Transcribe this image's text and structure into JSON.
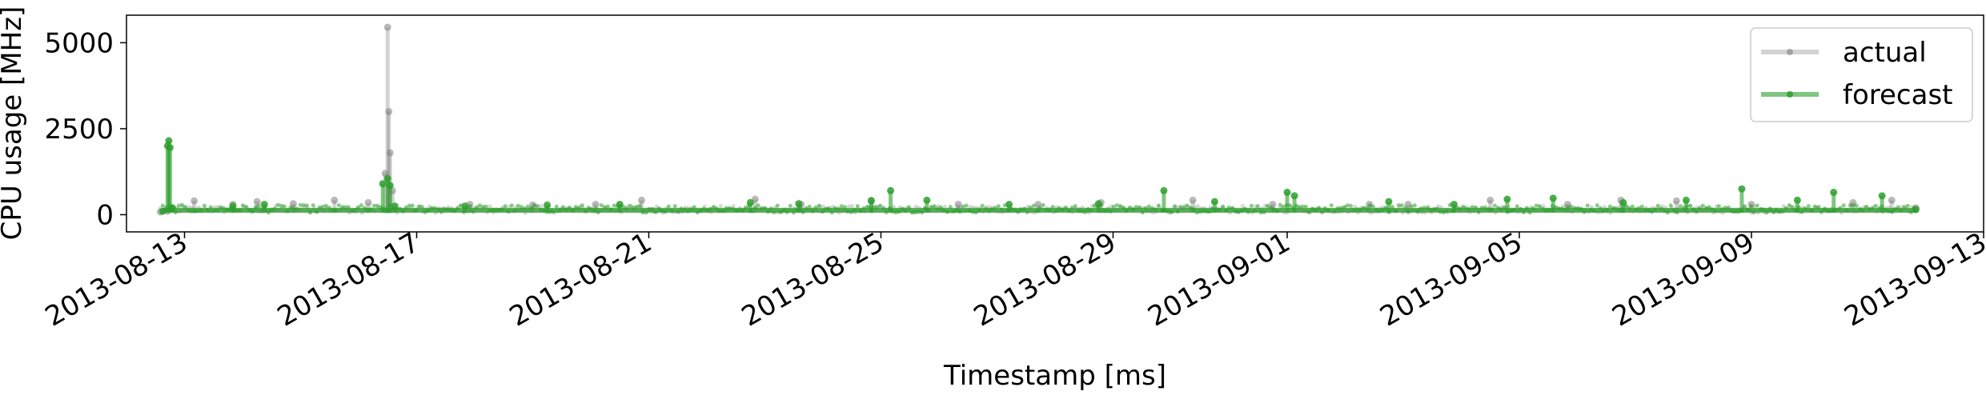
{
  "chart_data": {
    "type": "line",
    "title": "",
    "xlabel": "Timestamp [ms]",
    "ylabel": "CPU usage [MHz]",
    "xlim": [
      "2013-08-12T00:00",
      "2013-09-13T00:00"
    ],
    "ylim": [
      -500,
      5800
    ],
    "x_ticks": [
      "2013-08-13",
      "2013-08-17",
      "2013-08-21",
      "2013-08-25",
      "2013-08-29",
      "2013-09-01",
      "2013-09-05",
      "2013-09-09",
      "2013-09-13"
    ],
    "y_ticks": [
      0,
      2500,
      5000
    ],
    "y_tick_labels": [
      "0",
      "2500",
      "5000"
    ],
    "grid": false,
    "legend": {
      "position": "top-right",
      "entries": [
        "actual",
        "forecast"
      ]
    },
    "series": [
      {
        "name": "actual",
        "color": "#808080",
        "alpha": 0.35,
        "baseline_low": 50,
        "baseline_high": 180,
        "x": [
          "2013-08-12T14:00",
          "2013-08-12T17:00",
          "2013-08-13T04:00",
          "2013-08-13T20:00",
          "2013-08-14T06:00",
          "2013-08-14T21:00",
          "2013-08-15T14:00",
          "2013-08-16T04:00",
          "2013-08-16T11:00",
          "2013-08-16T12:00",
          "2013-08-16T12:30",
          "2013-08-16T13:00",
          "2013-08-16T14:00",
          "2013-08-17T22:00",
          "2013-08-19T00:00",
          "2013-08-20T02:00",
          "2013-08-20T21:00",
          "2013-08-22T20:00",
          "2013-08-23T15:00",
          "2013-08-24T20:00",
          "2013-08-26T08:00",
          "2013-08-27T17:00",
          "2013-08-28T19:00",
          "2013-08-30T09:00",
          "2013-08-31T18:00",
          "2013-09-02T10:00",
          "2013-09-03T02:00",
          "2013-09-04T12:00",
          "2013-09-05T20:00",
          "2013-09-06T18:00",
          "2013-09-07T17:00",
          "2013-09-09T00:00",
          "2013-09-10T18:00",
          "2013-09-11T10:00",
          "2013-09-11T20:00"
        ],
        "values": [
          80,
          100,
          400,
          300,
          380,
          320,
          420,
          350,
          1200,
          5450,
          3000,
          1800,
          700,
          300,
          280,
          300,
          420,
          450,
          300,
          420,
          300,
          300,
          350,
          420,
          300,
          300,
          300,
          420,
          300,
          420,
          400,
          300,
          350,
          420,
          200
        ]
      },
      {
        "name": "forecast",
        "color": "#2ca02c",
        "alpha": 0.6,
        "baseline_low": 60,
        "baseline_high": 200,
        "x": [
          "2013-08-12T15:00",
          "2013-08-12T17:00",
          "2013-08-12T17:30",
          "2013-08-12T18:00",
          "2013-08-12T19:00",
          "2013-08-13T20:00",
          "2013-08-14T09:00",
          "2013-08-16T10:00",
          "2013-08-16T12:00",
          "2013-08-16T13:00",
          "2013-08-16T15:00",
          "2013-08-17T20:00",
          "2013-08-19T06:00",
          "2013-08-20T12:00",
          "2013-08-22T18:00",
          "2013-08-23T14:00",
          "2013-08-24T20:00",
          "2013-08-25T04:00",
          "2013-08-25T19:00",
          "2013-08-27T05:00",
          "2013-08-28T18:00",
          "2013-08-29T21:00",
          "2013-08-30T18:00",
          "2013-09-01T00:00",
          "2013-09-01T03:00",
          "2013-09-02T18:00",
          "2013-09-03T21:00",
          "2013-09-04T19:00",
          "2013-09-05T14:00",
          "2013-09-06T19:00",
          "2013-09-07T21:00",
          "2013-09-08T20:00",
          "2013-09-09T19:00",
          "2013-09-10T10:00",
          "2013-09-11T06:00",
          "2013-09-11T20:00"
        ],
        "values": [
          100,
          2000,
          2150,
          1950,
          200,
          250,
          300,
          900,
          1050,
          850,
          250,
          250,
          280,
          300,
          350,
          320,
          400,
          700,
          420,
          300,
          320,
          700,
          380,
          650,
          550,
          380,
          300,
          450,
          480,
          350,
          420,
          750,
          420,
          650,
          550,
          150
        ]
      }
    ]
  }
}
